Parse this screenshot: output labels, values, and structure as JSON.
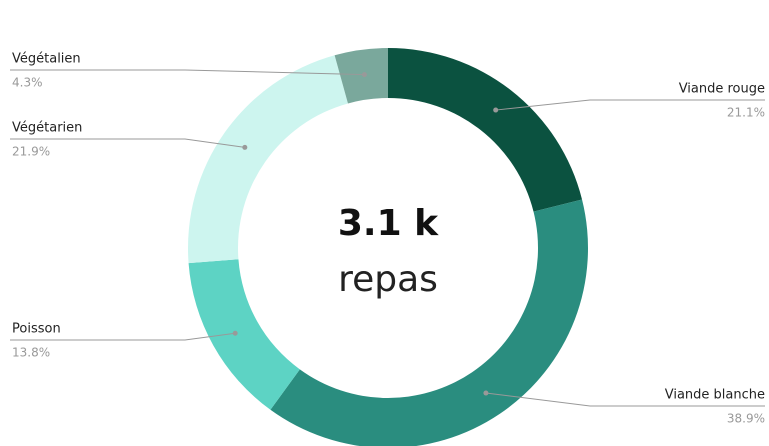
{
  "chart_data": {
    "type": "donut",
    "center_text": "3.1 k",
    "center_subtext": "repas",
    "categories": [
      "Viande rouge",
      "Viande blanche",
      "Poisson",
      "Végétarien",
      "Végétalien"
    ],
    "values": [
      21.1,
      38.9,
      13.8,
      21.9,
      4.3
    ],
    "value_labels": [
      "21.1%",
      "38.9%",
      "13.8%",
      "21.9%",
      "4.3%"
    ],
    "colors": [
      "#0b5240",
      "#2a8d7f",
      "#5dd3c4",
      "#cdf5ef",
      "#7aa89c"
    ]
  }
}
